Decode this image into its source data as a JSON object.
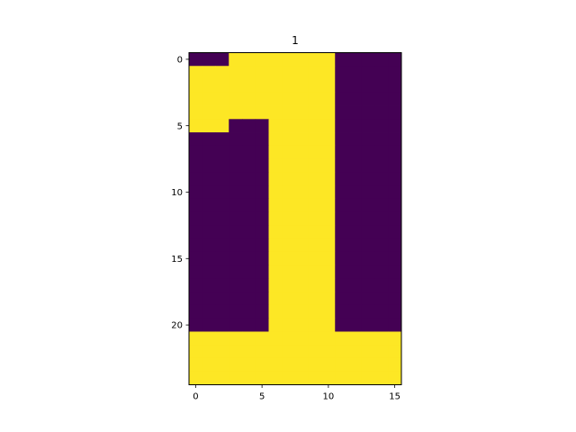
{
  "chart_data": {
    "type": "heatmap",
    "title": "1",
    "xlabel": "",
    "ylabel": "",
    "rows": 25,
    "cols": 16,
    "xlim": [
      -0.5,
      15.5
    ],
    "ylim": [
      24.5,
      -0.5
    ],
    "x_ticks": [
      0,
      5,
      10,
      15
    ],
    "y_ticks": [
      0,
      5,
      10,
      15,
      20
    ],
    "colormap": {
      "0": "#440154",
      "1": "#fde725"
    },
    "grid": false,
    "values": [
      [
        0,
        0,
        0,
        1,
        1,
        1,
        1,
        1,
        1,
        1,
        1,
        0,
        0,
        0,
        0,
        0
      ],
      [
        1,
        1,
        1,
        1,
        1,
        1,
        1,
        1,
        1,
        1,
        1,
        0,
        0,
        0,
        0,
        0
      ],
      [
        1,
        1,
        1,
        1,
        1,
        1,
        1,
        1,
        1,
        1,
        1,
        0,
        0,
        0,
        0,
        0
      ],
      [
        1,
        1,
        1,
        1,
        1,
        1,
        1,
        1,
        1,
        1,
        1,
        0,
        0,
        0,
        0,
        0
      ],
      [
        1,
        1,
        1,
        1,
        1,
        1,
        1,
        1,
        1,
        1,
        1,
        0,
        0,
        0,
        0,
        0
      ],
      [
        1,
        1,
        1,
        0,
        0,
        0,
        1,
        1,
        1,
        1,
        1,
        0,
        0,
        0,
        0,
        0
      ],
      [
        0,
        0,
        0,
        0,
        0,
        0,
        1,
        1,
        1,
        1,
        1,
        0,
        0,
        0,
        0,
        0
      ],
      [
        0,
        0,
        0,
        0,
        0,
        0,
        1,
        1,
        1,
        1,
        1,
        0,
        0,
        0,
        0,
        0
      ],
      [
        0,
        0,
        0,
        0,
        0,
        0,
        1,
        1,
        1,
        1,
        1,
        0,
        0,
        0,
        0,
        0
      ],
      [
        0,
        0,
        0,
        0,
        0,
        0,
        1,
        1,
        1,
        1,
        1,
        0,
        0,
        0,
        0,
        0
      ],
      [
        0,
        0,
        0,
        0,
        0,
        0,
        1,
        1,
        1,
        1,
        1,
        0,
        0,
        0,
        0,
        0
      ],
      [
        0,
        0,
        0,
        0,
        0,
        0,
        1,
        1,
        1,
        1,
        1,
        0,
        0,
        0,
        0,
        0
      ],
      [
        0,
        0,
        0,
        0,
        0,
        0,
        1,
        1,
        1,
        1,
        1,
        0,
        0,
        0,
        0,
        0
      ],
      [
        0,
        0,
        0,
        0,
        0,
        0,
        1,
        1,
        1,
        1,
        1,
        0,
        0,
        0,
        0,
        0
      ],
      [
        0,
        0,
        0,
        0,
        0,
        0,
        1,
        1,
        1,
        1,
        1,
        0,
        0,
        0,
        0,
        0
      ],
      [
        0,
        0,
        0,
        0,
        0,
        0,
        1,
        1,
        1,
        1,
        1,
        0,
        0,
        0,
        0,
        0
      ],
      [
        0,
        0,
        0,
        0,
        0,
        0,
        1,
        1,
        1,
        1,
        1,
        0,
        0,
        0,
        0,
        0
      ],
      [
        0,
        0,
        0,
        0,
        0,
        0,
        1,
        1,
        1,
        1,
        1,
        0,
        0,
        0,
        0,
        0
      ],
      [
        0,
        0,
        0,
        0,
        0,
        0,
        1,
        1,
        1,
        1,
        1,
        0,
        0,
        0,
        0,
        0
      ],
      [
        0,
        0,
        0,
        0,
        0,
        0,
        1,
        1,
        1,
        1,
        1,
        0,
        0,
        0,
        0,
        0
      ],
      [
        0,
        0,
        0,
        0,
        0,
        0,
        1,
        1,
        1,
        1,
        1,
        0,
        0,
        0,
        0,
        0
      ],
      [
        1,
        1,
        1,
        1,
        1,
        1,
        1,
        1,
        1,
        1,
        1,
        1,
        1,
        1,
        1,
        1
      ],
      [
        1,
        1,
        1,
        1,
        1,
        1,
        1,
        1,
        1,
        1,
        1,
        1,
        1,
        1,
        1,
        1
      ],
      [
        1,
        1,
        1,
        1,
        1,
        1,
        1,
        1,
        1,
        1,
        1,
        1,
        1,
        1,
        1,
        1
      ],
      [
        1,
        1,
        1,
        1,
        1,
        1,
        1,
        1,
        1,
        1,
        1,
        1,
        1,
        1,
        1,
        1
      ]
    ]
  }
}
